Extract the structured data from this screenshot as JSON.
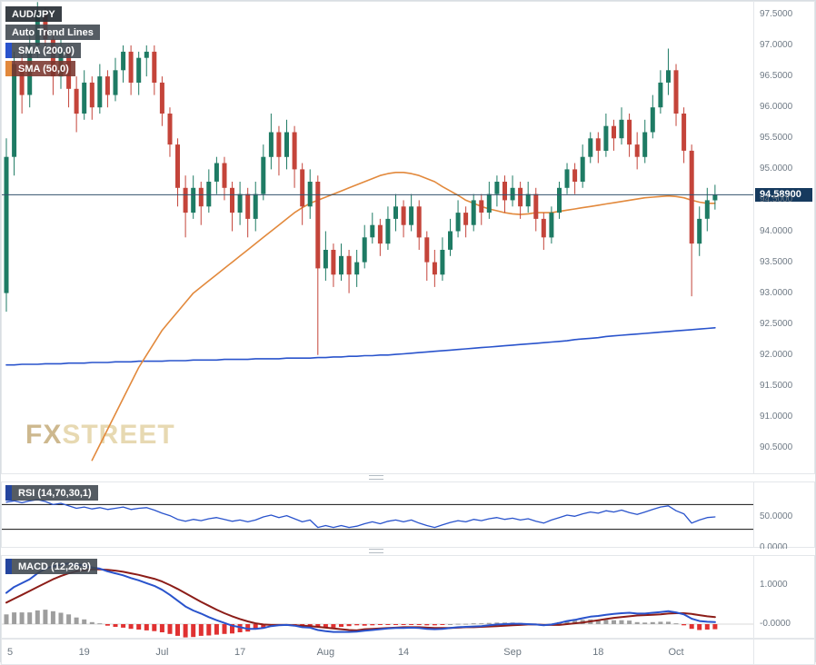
{
  "legend": {
    "symbol": "AUD/JPY",
    "auto_trend": "Auto Trend Lines",
    "sma200": "SMA (200,0)",
    "sma50": "SMA (50,0)"
  },
  "watermark": {
    "fx": "FX",
    "street": "STREET"
  },
  "rsi_panel": {
    "label": "RSI (14,70,30,1)"
  },
  "macd_panel": {
    "label": "MACD (12,26,9)"
  },
  "price_axis": {
    "current_price_label": "94.58900"
  },
  "colors": {
    "up_candle": "#1e7b64",
    "down_candle": "#c4443a",
    "sma200_line": "#2953cc",
    "sma50_line": "#e2893c",
    "rsi_line": "#2953cc",
    "rsi_level_line": "#111111",
    "macd_line": "#2953cc",
    "macd_signal_line": "#8c1d18",
    "hist_positive": "#9e9e9e",
    "hist_negative": "#e03131",
    "current_price_line": "#33506b",
    "price_badge_bg": "#163a5e"
  },
  "chart_data": {
    "type": "candlestick",
    "symbol": "AUD/JPY",
    "price_range": [
      90.09,
      97.705
    ],
    "current_price": 94.589,
    "price_ticks": [
      {
        "v": 97.5,
        "text": "97.5000"
      },
      {
        "v": 97.0,
        "text": "97.0000"
      },
      {
        "v": 96.5,
        "text": "96.5000"
      },
      {
        "v": 96.0,
        "text": "96.0000"
      },
      {
        "v": 95.5,
        "text": "95.5000"
      },
      {
        "v": 95.0,
        "text": "95.0000"
      },
      {
        "v": 94.5,
        "text": "94.5000"
      },
      {
        "v": 94.0,
        "text": "94.0000"
      },
      {
        "v": 93.5,
        "text": "93.5000"
      },
      {
        "v": 93.0,
        "text": "93.0000"
      },
      {
        "v": 92.5,
        "text": "92.5000"
      },
      {
        "v": 92.0,
        "text": "92.0000"
      },
      {
        "v": 91.5,
        "text": "91.5000"
      },
      {
        "v": 91.0,
        "text": "91.0000"
      },
      {
        "v": 90.5,
        "text": "90.5000"
      }
    ],
    "x_tick_labels": [
      {
        "index": 0,
        "label": "5"
      },
      {
        "index": 10,
        "label": "19"
      },
      {
        "index": 20,
        "label": "Jul"
      },
      {
        "index": 30,
        "label": "17"
      },
      {
        "index": 41,
        "label": "Aug"
      },
      {
        "index": 51,
        "label": "14"
      },
      {
        "index": 65,
        "label": "Sep"
      },
      {
        "index": 76,
        "label": "18"
      },
      {
        "index": 86,
        "label": "Oct"
      }
    ],
    "candles_ohlc": [
      [
        93.0,
        95.5,
        92.7,
        95.2
      ],
      [
        95.2,
        96.9,
        94.9,
        96.7
      ],
      [
        96.7,
        96.9,
        95.9,
        96.2
      ],
      [
        96.2,
        97.2,
        96.0,
        97.0
      ],
      [
        97.0,
        97.7,
        96.8,
        97.5
      ],
      [
        97.5,
        97.6,
        96.9,
        97.1
      ],
      [
        97.1,
        97.2,
        96.2,
        96.5
      ],
      [
        96.5,
        97.1,
        96.3,
        96.9
      ],
      [
        96.9,
        97.0,
        96.0,
        96.3
      ],
      [
        96.3,
        96.5,
        95.6,
        95.9
      ],
      [
        95.9,
        96.6,
        95.8,
        96.4
      ],
      [
        96.4,
        96.5,
        95.8,
        96.0
      ],
      [
        96.0,
        96.7,
        95.9,
        96.5
      ],
      [
        96.5,
        96.6,
        96.0,
        96.2
      ],
      [
        96.2,
        96.8,
        96.1,
        96.6
      ],
      [
        96.6,
        97.0,
        96.4,
        96.9
      ],
      [
        96.9,
        97.0,
        96.2,
        96.4
      ],
      [
        96.4,
        96.9,
        96.2,
        96.8
      ],
      [
        96.8,
        97.0,
        96.5,
        96.9
      ],
      [
        96.9,
        97.0,
        96.2,
        96.4
      ],
      [
        96.4,
        96.5,
        95.7,
        95.9
      ],
      [
        95.9,
        96.0,
        95.2,
        95.4
      ],
      [
        95.4,
        95.5,
        94.4,
        94.7
      ],
      [
        94.7,
        94.9,
        93.9,
        94.3
      ],
      [
        94.3,
        94.9,
        94.2,
        94.7
      ],
      [
        94.7,
        94.8,
        94.1,
        94.4
      ],
      [
        94.4,
        95.0,
        94.3,
        94.8
      ],
      [
        94.8,
        95.2,
        94.6,
        95.1
      ],
      [
        95.1,
        95.2,
        94.5,
        94.7
      ],
      [
        94.7,
        94.8,
        94.0,
        94.3
      ],
      [
        94.3,
        94.8,
        94.1,
        94.6
      ],
      [
        94.6,
        94.7,
        93.9,
        94.2
      ],
      [
        94.2,
        94.8,
        94.0,
        94.6
      ],
      [
        94.6,
        95.4,
        94.5,
        95.2
      ],
      [
        95.2,
        95.9,
        95.0,
        95.6
      ],
      [
        95.6,
        95.7,
        94.9,
        95.2
      ],
      [
        95.2,
        95.8,
        95.0,
        95.6
      ],
      [
        95.6,
        95.7,
        94.7,
        95.0
      ],
      [
        95.0,
        95.1,
        94.1,
        94.4
      ],
      [
        94.4,
        95.0,
        94.2,
        94.8
      ],
      [
        94.8,
        94.9,
        92.0,
        93.4
      ],
      [
        93.4,
        94.0,
        93.2,
        93.7
      ],
      [
        93.7,
        93.8,
        93.1,
        93.3
      ],
      [
        93.3,
        93.8,
        93.2,
        93.6
      ],
      [
        93.6,
        93.7,
        93.0,
        93.3
      ],
      [
        93.3,
        93.7,
        93.1,
        93.5
      ],
      [
        93.5,
        94.1,
        93.4,
        93.9
      ],
      [
        93.9,
        94.3,
        93.8,
        94.1
      ],
      [
        94.1,
        94.2,
        93.6,
        93.8
      ],
      [
        93.8,
        94.4,
        93.7,
        94.2
      ],
      [
        94.2,
        94.6,
        94.0,
        94.4
      ],
      [
        94.4,
        94.5,
        93.9,
        94.1
      ],
      [
        94.1,
        94.6,
        94.0,
        94.4
      ],
      [
        94.4,
        94.5,
        93.7,
        93.9
      ],
      [
        93.9,
        94.0,
        93.2,
        93.5
      ],
      [
        93.5,
        93.7,
        93.1,
        93.3
      ],
      [
        93.3,
        93.9,
        93.2,
        93.7
      ],
      [
        93.7,
        94.2,
        93.6,
        94.0
      ],
      [
        94.0,
        94.5,
        93.9,
        94.3
      ],
      [
        94.3,
        94.4,
        93.9,
        94.1
      ],
      [
        94.1,
        94.6,
        94.0,
        94.5
      ],
      [
        94.5,
        94.6,
        94.1,
        94.3
      ],
      [
        94.3,
        94.8,
        94.2,
        94.6
      ],
      [
        94.6,
        94.9,
        94.4,
        94.8
      ],
      [
        94.8,
        94.9,
        94.3,
        94.5
      ],
      [
        94.5,
        94.9,
        94.4,
        94.7
      ],
      [
        94.7,
        94.8,
        94.2,
        94.4
      ],
      [
        94.4,
        94.8,
        94.3,
        94.6
      ],
      [
        94.6,
        94.7,
        94.0,
        94.2
      ],
      [
        94.2,
        94.3,
        93.7,
        93.9
      ],
      [
        93.9,
        94.4,
        93.8,
        94.3
      ],
      [
        94.3,
        94.8,
        94.2,
        94.7
      ],
      [
        94.7,
        95.1,
        94.6,
        95.0
      ],
      [
        95.0,
        95.1,
        94.6,
        94.8
      ],
      [
        94.8,
        95.4,
        94.7,
        95.2
      ],
      [
        95.2,
        95.6,
        95.1,
        95.5
      ],
      [
        95.5,
        95.6,
        95.1,
        95.3
      ],
      [
        95.3,
        95.9,
        95.2,
        95.7
      ],
      [
        95.7,
        95.8,
        95.3,
        95.5
      ],
      [
        95.5,
        96.0,
        95.4,
        95.8
      ],
      [
        95.8,
        95.9,
        95.2,
        95.4
      ],
      [
        95.4,
        95.6,
        95.0,
        95.2
      ],
      [
        95.2,
        95.8,
        95.1,
        95.6
      ],
      [
        95.6,
        96.2,
        95.5,
        96.0
      ],
      [
        96.0,
        96.6,
        95.9,
        96.4
      ],
      [
        96.4,
        96.95,
        96.2,
        96.6
      ],
      [
        96.6,
        96.7,
        95.7,
        95.9
      ],
      [
        95.9,
        96.0,
        95.1,
        95.3
      ],
      [
        95.3,
        95.4,
        92.95,
        93.8
      ],
      [
        93.8,
        94.4,
        93.6,
        94.2
      ],
      [
        94.2,
        94.7,
        94.0,
        94.5
      ],
      [
        94.5,
        94.75,
        94.35,
        94.589
      ]
    ],
    "sma50": [
      null,
      null,
      null,
      null,
      null,
      null,
      null,
      null,
      null,
      null,
      null,
      90.3,
      90.55,
      90.8,
      91.05,
      91.3,
      91.55,
      91.8,
      92.0,
      92.2,
      92.4,
      92.55,
      92.7,
      92.85,
      93.0,
      93.1,
      93.2,
      93.3,
      93.4,
      93.5,
      93.6,
      93.7,
      93.8,
      93.9,
      94.0,
      94.1,
      94.2,
      94.3,
      94.38,
      94.45,
      94.5,
      94.55,
      94.6,
      94.65,
      94.7,
      94.75,
      94.8,
      94.85,
      94.9,
      94.93,
      94.95,
      94.95,
      94.93,
      94.9,
      94.85,
      94.8,
      94.72,
      94.65,
      94.58,
      94.5,
      94.45,
      94.4,
      94.36,
      94.33,
      94.3,
      94.28,
      94.27,
      94.28,
      94.3,
      94.3,
      94.3,
      94.32,
      94.34,
      94.36,
      94.38,
      94.4,
      94.42,
      94.44,
      94.46,
      94.48,
      94.5,
      94.52,
      94.54,
      94.55,
      94.56,
      94.57,
      94.56,
      94.54,
      94.5,
      94.47,
      94.45,
      94.45
    ],
    "sma200": [
      91.84,
      91.84,
      91.85,
      91.85,
      91.85,
      91.86,
      91.86,
      91.86,
      91.87,
      91.87,
      91.87,
      91.88,
      91.88,
      91.88,
      91.89,
      91.89,
      91.89,
      91.9,
      91.9,
      91.9,
      91.9,
      91.91,
      91.91,
      91.91,
      91.92,
      91.92,
      91.92,
      91.92,
      91.93,
      91.93,
      91.93,
      91.93,
      91.94,
      91.94,
      91.94,
      91.94,
      91.95,
      91.95,
      91.95,
      91.95,
      91.96,
      91.96,
      91.97,
      91.97,
      91.98,
      91.98,
      91.99,
      91.99,
      92.0,
      92.0,
      92.01,
      92.02,
      92.03,
      92.04,
      92.05,
      92.06,
      92.07,
      92.08,
      92.09,
      92.1,
      92.11,
      92.12,
      92.13,
      92.14,
      92.15,
      92.16,
      92.17,
      92.18,
      92.19,
      92.2,
      92.21,
      92.22,
      92.23,
      92.25,
      92.26,
      92.27,
      92.28,
      92.3,
      92.31,
      92.32,
      92.33,
      92.34,
      92.35,
      92.36,
      92.37,
      92.38,
      92.39,
      92.4,
      92.41,
      92.42,
      92.43,
      92.44
    ],
    "rsi": {
      "upper_level": 70,
      "lower_level": 30,
      "axis_labels": [
        {
          "v": 50,
          "text": "50.0000"
        },
        {
          "v": 0,
          "text": "0.0000"
        }
      ],
      "values": [
        74,
        76,
        73,
        76,
        78,
        75,
        70,
        72,
        68,
        64,
        66,
        63,
        65,
        62,
        64,
        66,
        62,
        64,
        65,
        61,
        56,
        52,
        46,
        43,
        46,
        44,
        47,
        49,
        46,
        43,
        45,
        42,
        45,
        50,
        53,
        49,
        52,
        47,
        42,
        45,
        33,
        36,
        33,
        36,
        33,
        35,
        39,
        42,
        39,
        43,
        45,
        42,
        45,
        40,
        36,
        33,
        37,
        41,
        44,
        42,
        46,
        44,
        47,
        49,
        46,
        48,
        45,
        47,
        43,
        40,
        45,
        49,
        53,
        51,
        55,
        58,
        56,
        60,
        58,
        61,
        57,
        54,
        58,
        62,
        66,
        68,
        60,
        55,
        40,
        45,
        49,
        50
      ]
    },
    "macd": {
      "axis_labels": [
        {
          "v": 1,
          "text": "1.0000"
        },
        {
          "v": 0,
          "text": "-0.0000"
        }
      ],
      "line": [
        0.8,
        0.95,
        1.05,
        1.15,
        1.3,
        1.42,
        1.48,
        1.52,
        1.55,
        1.52,
        1.5,
        1.45,
        1.42,
        1.35,
        1.3,
        1.25,
        1.18,
        1.12,
        1.05,
        0.98,
        0.88,
        0.75,
        0.6,
        0.45,
        0.35,
        0.27,
        0.18,
        0.1,
        0.03,
        -0.04,
        -0.08,
        -0.12,
        -0.12,
        -0.1,
        -0.05,
        -0.03,
        -0.02,
        -0.04,
        -0.08,
        -0.09,
        -0.15,
        -0.18,
        -0.2,
        -0.2,
        -0.2,
        -0.19,
        -0.17,
        -0.15,
        -0.13,
        -0.11,
        -0.1,
        -0.1,
        -0.09,
        -0.1,
        -0.12,
        -0.13,
        -0.12,
        -0.1,
        -0.08,
        -0.07,
        -0.06,
        -0.05,
        -0.03,
        -0.01,
        0.0,
        0.01,
        0.01,
        0.0,
        -0.01,
        -0.03,
        -0.01,
        0.03,
        0.08,
        0.11,
        0.15,
        0.19,
        0.21,
        0.24,
        0.26,
        0.28,
        0.29,
        0.27,
        0.27,
        0.29,
        0.31,
        0.33,
        0.3,
        0.25,
        0.14,
        0.08,
        0.06,
        0.05
      ],
      "signal": [
        0.55,
        0.65,
        0.75,
        0.85,
        0.95,
        1.05,
        1.15,
        1.23,
        1.3,
        1.35,
        1.38,
        1.4,
        1.4,
        1.39,
        1.37,
        1.34,
        1.3,
        1.26,
        1.21,
        1.16,
        1.09,
        1.0,
        0.9,
        0.79,
        0.68,
        0.57,
        0.47,
        0.37,
        0.28,
        0.2,
        0.13,
        0.07,
        0.02,
        -0.01,
        -0.02,
        -0.02,
        -0.02,
        -0.03,
        -0.04,
        -0.05,
        -0.07,
        -0.09,
        -0.11,
        -0.13,
        -0.15,
        -0.16,
        -0.13,
        -0.12,
        -0.11,
        -0.1,
        -0.09,
        -0.08,
        -0.08,
        -0.08,
        -0.09,
        -0.1,
        -0.1,
        -0.1,
        -0.09,
        -0.08,
        -0.08,
        -0.07,
        -0.06,
        -0.05,
        -0.04,
        -0.03,
        -0.02,
        -0.01,
        -0.01,
        -0.02,
        -0.02,
        -0.02,
        0.0,
        0.02,
        0.04,
        0.07,
        0.1,
        0.13,
        0.16,
        0.18,
        0.2,
        0.22,
        0.23,
        0.24,
        0.25,
        0.27,
        0.28,
        0.28,
        0.26,
        0.23,
        0.2,
        0.18
      ]
    }
  }
}
